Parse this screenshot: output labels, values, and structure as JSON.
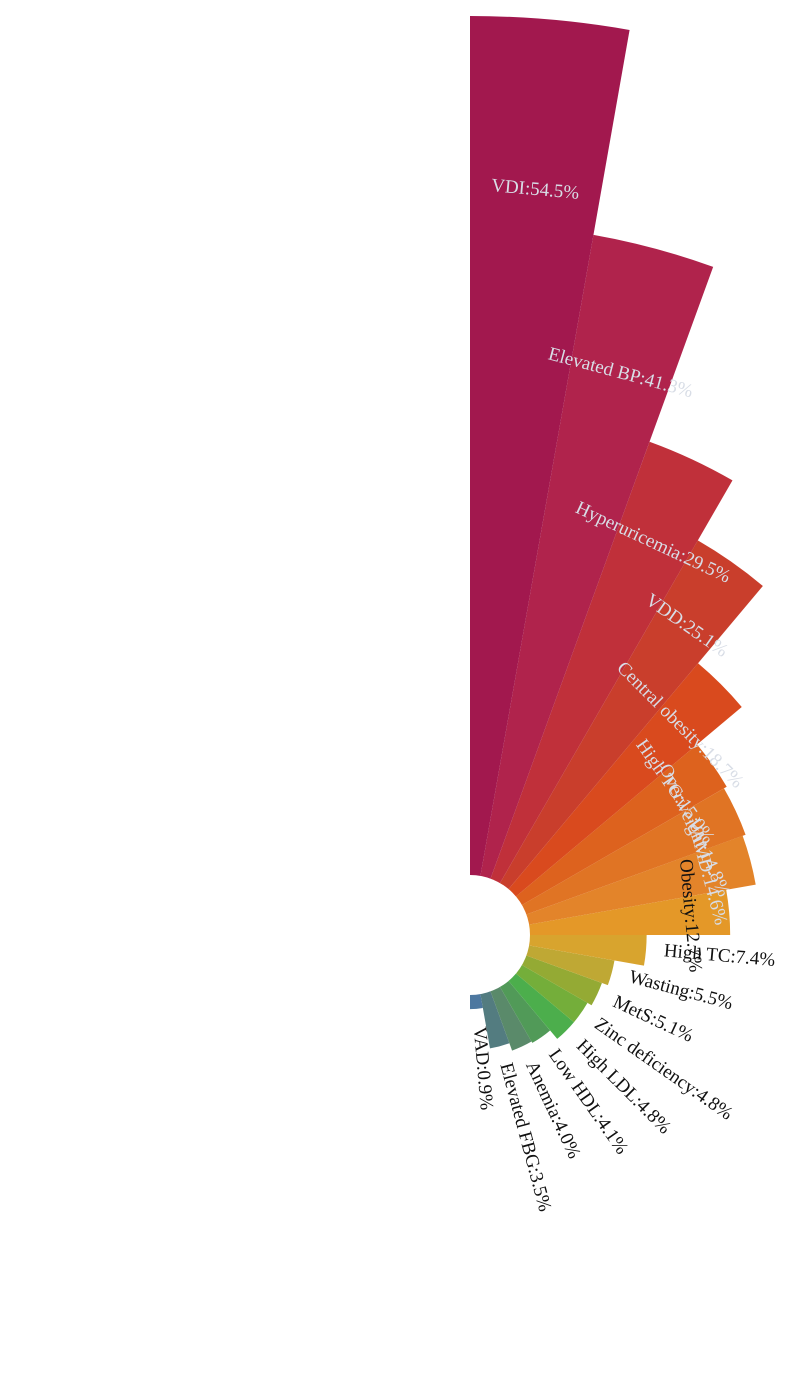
{
  "chart_data": {
    "type": "nightingale-rose",
    "title": "",
    "unit": "%",
    "categories": [
      "VAD",
      "Elevated FBG",
      "Anemia",
      "Low HDL",
      "High LDL",
      "Zinc deficiency",
      "MetS",
      "Wasting",
      "High TC",
      "Obesity",
      "VAMD",
      "Overweight",
      "High TG",
      "Central obesity",
      "VDD",
      "Hyperuricemia",
      "Elevated BP",
      "VDI"
    ],
    "values": [
      0.9,
      3.5,
      4.0,
      4.1,
      4.8,
      4.8,
      5.1,
      5.5,
      7.4,
      12.7,
      14.6,
      14.8,
      15.0,
      18.7,
      25.1,
      29.5,
      41.3,
      54.5
    ],
    "labels": [
      "VAD:0.9%",
      "Elevated FBG:3.5%",
      "Anemia:4.0%",
      "Low HDL:4.1%",
      "High LDL:4.8%",
      "Zinc deficiency:4.8%",
      "MetS:5.1%",
      "Wasting:5.5%",
      "High TC:7.4%",
      "Obesity:12.7%",
      "VAMD:14.6%",
      "Overweight:14.8%",
      "High TG:15.0%",
      "Central obesity:18.7%",
      "VDD:25.1%",
      "Hyperuricemia:29.5%",
      "Elevated BP:41.3%",
      "VDI:54.5%"
    ],
    "colors": [
      "#4d78a0",
      "#537c80",
      "#5a8a6a",
      "#519a58",
      "#4cae4c",
      "#74ae3a",
      "#94aa34",
      "#bfa834",
      "#d8a42e",
      "#e49828",
      "#e3842a",
      "#e07424",
      "#dd621e",
      "#d94a1e",
      "#c93e2c",
      "#c0303a",
      "#b0234c",
      "#a2184e"
    ],
    "label_colors": [
      "#111111",
      "#111111",
      "#111111",
      "#111111",
      "#111111",
      "#111111",
      "#111111",
      "#111111",
      "#111111",
      "#111111",
      "#d8dde6",
      "#d8dde6",
      "#d8dde6",
      "#d8dde6",
      "#d8dde6",
      "#d8dde6",
      "#d8dde6",
      "#d8dde6"
    ]
  }
}
